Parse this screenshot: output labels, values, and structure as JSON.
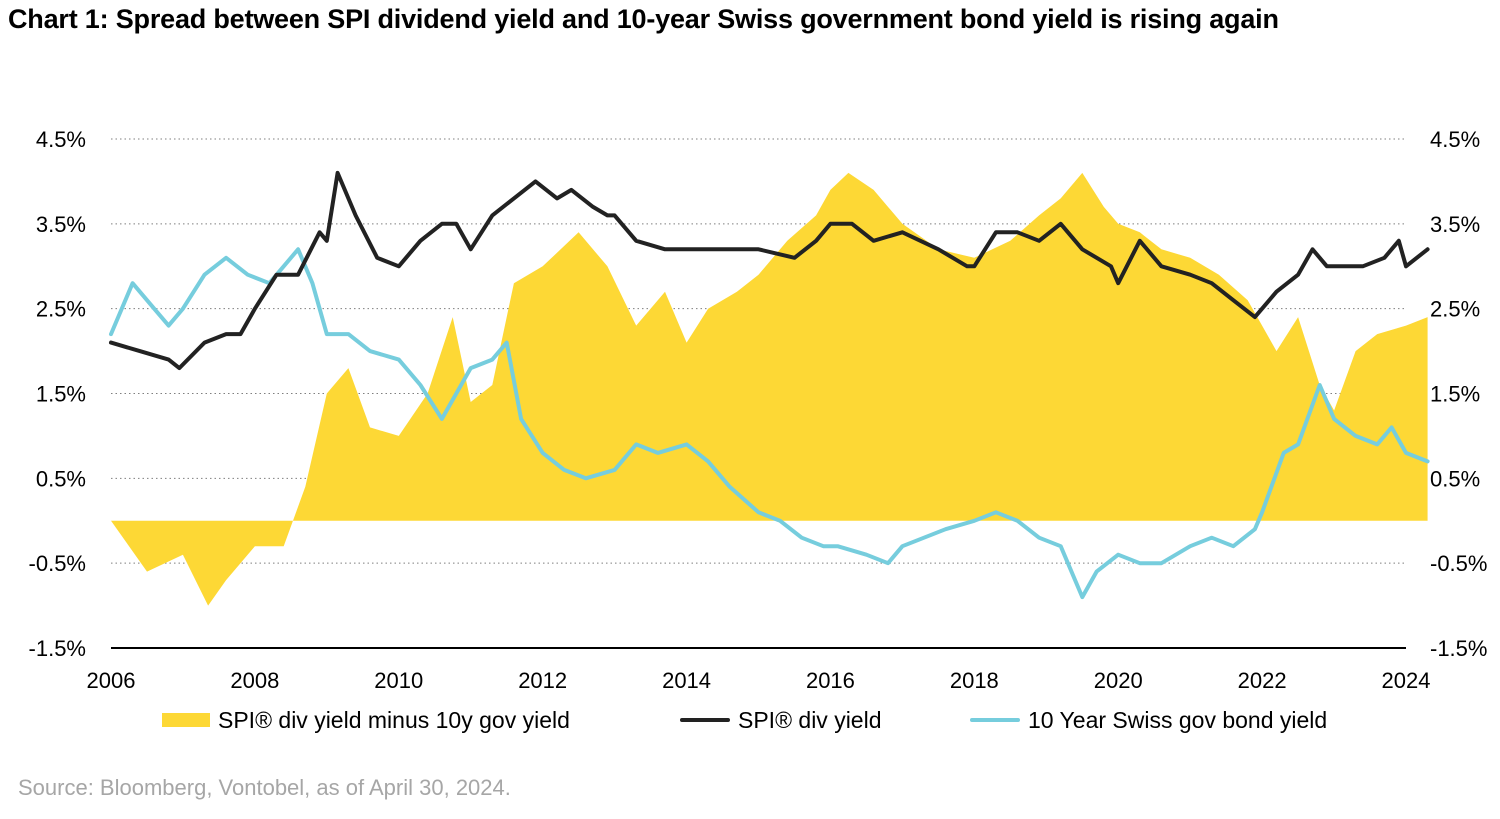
{
  "title": "Chart 1: Spread between SPI dividend yield and 10-year Swiss government bond yield is rising again",
  "source": "Source: Bloomberg, Vontobel, as of April 30, 2024.",
  "colors": {
    "spread": "#FDD835",
    "div_yield": "#222222",
    "bond_yield": "#76CDDD",
    "grid": "#7f7f7f"
  },
  "chart_data": {
    "type": "line",
    "title": "Chart 1: Spread between SPI dividend yield and 10-year Swiss government bond yield is rising again",
    "xlabel": "",
    "ylabel": "",
    "xlim": [
      2006,
      2024
    ],
    "ylim": [
      -1.5,
      4.5
    ],
    "x_ticks": [
      "2006",
      "2008",
      "2010",
      "2012",
      "2014",
      "2016",
      "2018",
      "2020",
      "2022",
      "2024"
    ],
    "y_ticks": [
      "4.5%",
      "3.5%",
      "2.5%",
      "1.5%",
      "0.5%",
      "-0.5%",
      "-1.5%"
    ],
    "y_tick_values": [
      4.5,
      3.5,
      2.5,
      1.5,
      0.5,
      -0.5,
      -1.5
    ],
    "grid": "horizontal dotted",
    "legend_position": "bottom",
    "series": [
      {
        "name": "SPI® div yield minus 10y gov yield",
        "kind": "area",
        "x": [
          2006.0,
          2006.5,
          2007.0,
          2007.35,
          2007.6,
          2008.0,
          2008.4,
          2008.7,
          2009.0,
          2009.3,
          2009.6,
          2010.0,
          2010.4,
          2010.75,
          2011.0,
          2011.3,
          2011.6,
          2012.0,
          2012.5,
          2012.9,
          2013.3,
          2013.7,
          2014.0,
          2014.3,
          2014.7,
          2015.0,
          2015.4,
          2015.8,
          2016.0,
          2016.25,
          2016.6,
          2017.0,
          2017.5,
          2018.0,
          2018.5,
          2018.9,
          2019.2,
          2019.5,
          2019.8,
          2020.0,
          2020.3,
          2020.6,
          2021.0,
          2021.4,
          2021.8,
          2022.0,
          2022.2,
          2022.5,
          2022.8,
          2023.0,
          2023.3,
          2023.6,
          2024.0,
          2024.3
        ],
        "values": [
          0.0,
          -0.6,
          -0.4,
          -1.0,
          -0.7,
          -0.3,
          -0.3,
          0.4,
          1.5,
          1.8,
          1.1,
          1.0,
          1.5,
          2.4,
          1.4,
          1.6,
          2.8,
          3.0,
          3.4,
          3.0,
          2.3,
          2.7,
          2.1,
          2.5,
          2.7,
          2.9,
          3.3,
          3.6,
          3.9,
          4.1,
          3.9,
          3.5,
          3.2,
          3.1,
          3.3,
          3.6,
          3.8,
          4.1,
          3.7,
          3.5,
          3.4,
          3.2,
          3.1,
          2.9,
          2.6,
          2.3,
          2.0,
          2.4,
          1.6,
          1.3,
          2.0,
          2.2,
          2.3,
          2.4
        ]
      },
      {
        "name": "SPI® div yield",
        "kind": "line",
        "x": [
          2006.0,
          2006.4,
          2006.8,
          2006.95,
          2007.3,
          2007.6,
          2007.8,
          2008.0,
          2008.3,
          2008.6,
          2008.9,
          2009.0,
          2009.15,
          2009.4,
          2009.7,
          2010.0,
          2010.3,
          2010.6,
          2010.8,
          2011.0,
          2011.3,
          2011.6,
          2011.9,
          2012.2,
          2012.4,
          2012.7,
          2012.9,
          2013.0,
          2013.3,
          2013.7,
          2014.0,
          2014.5,
          2015.0,
          2015.5,
          2015.8,
          2016.0,
          2016.3,
          2016.6,
          2017.0,
          2017.5,
          2017.9,
          2018.0,
          2018.3,
          2018.6,
          2018.9,
          2019.2,
          2019.5,
          2019.9,
          2020.0,
          2020.3,
          2020.6,
          2021.0,
          2021.3,
          2021.6,
          2021.9,
          2022.2,
          2022.5,
          2022.7,
          2022.9,
          2023.1,
          2023.4,
          2023.7,
          2023.9,
          2024.0,
          2024.3
        ],
        "values": [
          2.1,
          2.0,
          1.9,
          1.8,
          2.1,
          2.2,
          2.2,
          2.5,
          2.9,
          2.9,
          3.4,
          3.3,
          4.1,
          3.6,
          3.1,
          3.0,
          3.3,
          3.5,
          3.5,
          3.2,
          3.6,
          3.8,
          4.0,
          3.8,
          3.9,
          3.7,
          3.6,
          3.6,
          3.3,
          3.2,
          3.2,
          3.2,
          3.2,
          3.1,
          3.3,
          3.5,
          3.5,
          3.3,
          3.4,
          3.2,
          3.0,
          3.0,
          3.4,
          3.4,
          3.3,
          3.5,
          3.2,
          3.0,
          2.8,
          3.3,
          3.0,
          2.9,
          2.8,
          2.6,
          2.4,
          2.7,
          2.9,
          3.2,
          3.0,
          3.0,
          3.0,
          3.1,
          3.3,
          3.0,
          3.2
        ]
      },
      {
        "name": "10 Year Swiss gov bond yield",
        "kind": "line",
        "x": [
          2006.0,
          2006.3,
          2006.6,
          2006.8,
          2007.0,
          2007.3,
          2007.6,
          2007.9,
          2008.2,
          2008.4,
          2008.6,
          2008.8,
          2009.0,
          2009.3,
          2009.6,
          2010.0,
          2010.3,
          2010.6,
          2010.8,
          2011.0,
          2011.3,
          2011.5,
          2011.7,
          2012.0,
          2012.3,
          2012.6,
          2013.0,
          2013.3,
          2013.6,
          2014.0,
          2014.3,
          2014.6,
          2015.0,
          2015.3,
          2015.6,
          2015.9,
          2016.1,
          2016.5,
          2016.8,
          2017.0,
          2017.3,
          2017.6,
          2018.0,
          2018.3,
          2018.6,
          2018.9,
          2019.2,
          2019.5,
          2019.7,
          2020.0,
          2020.3,
          2020.6,
          2021.0,
          2021.3,
          2021.6,
          2021.9,
          2022.0,
          2022.3,
          2022.5,
          2022.8,
          2023.0,
          2023.3,
          2023.6,
          2023.8,
          2024.0,
          2024.3
        ],
        "values": [
          2.2,
          2.8,
          2.5,
          2.3,
          2.5,
          2.9,
          3.1,
          2.9,
          2.8,
          3.0,
          3.2,
          2.8,
          2.2,
          2.2,
          2.0,
          1.9,
          1.6,
          1.2,
          1.5,
          1.8,
          1.9,
          2.1,
          1.2,
          0.8,
          0.6,
          0.5,
          0.6,
          0.9,
          0.8,
          0.9,
          0.7,
          0.4,
          0.1,
          0.0,
          -0.2,
          -0.3,
          -0.3,
          -0.4,
          -0.5,
          -0.3,
          -0.2,
          -0.1,
          0.0,
          0.1,
          0.0,
          -0.2,
          -0.3,
          -0.9,
          -0.6,
          -0.4,
          -0.5,
          -0.5,
          -0.3,
          -0.2,
          -0.3,
          -0.1,
          0.1,
          0.8,
          0.9,
          1.6,
          1.2,
          1.0,
          0.9,
          1.1,
          0.8,
          0.7
        ]
      }
    ]
  }
}
